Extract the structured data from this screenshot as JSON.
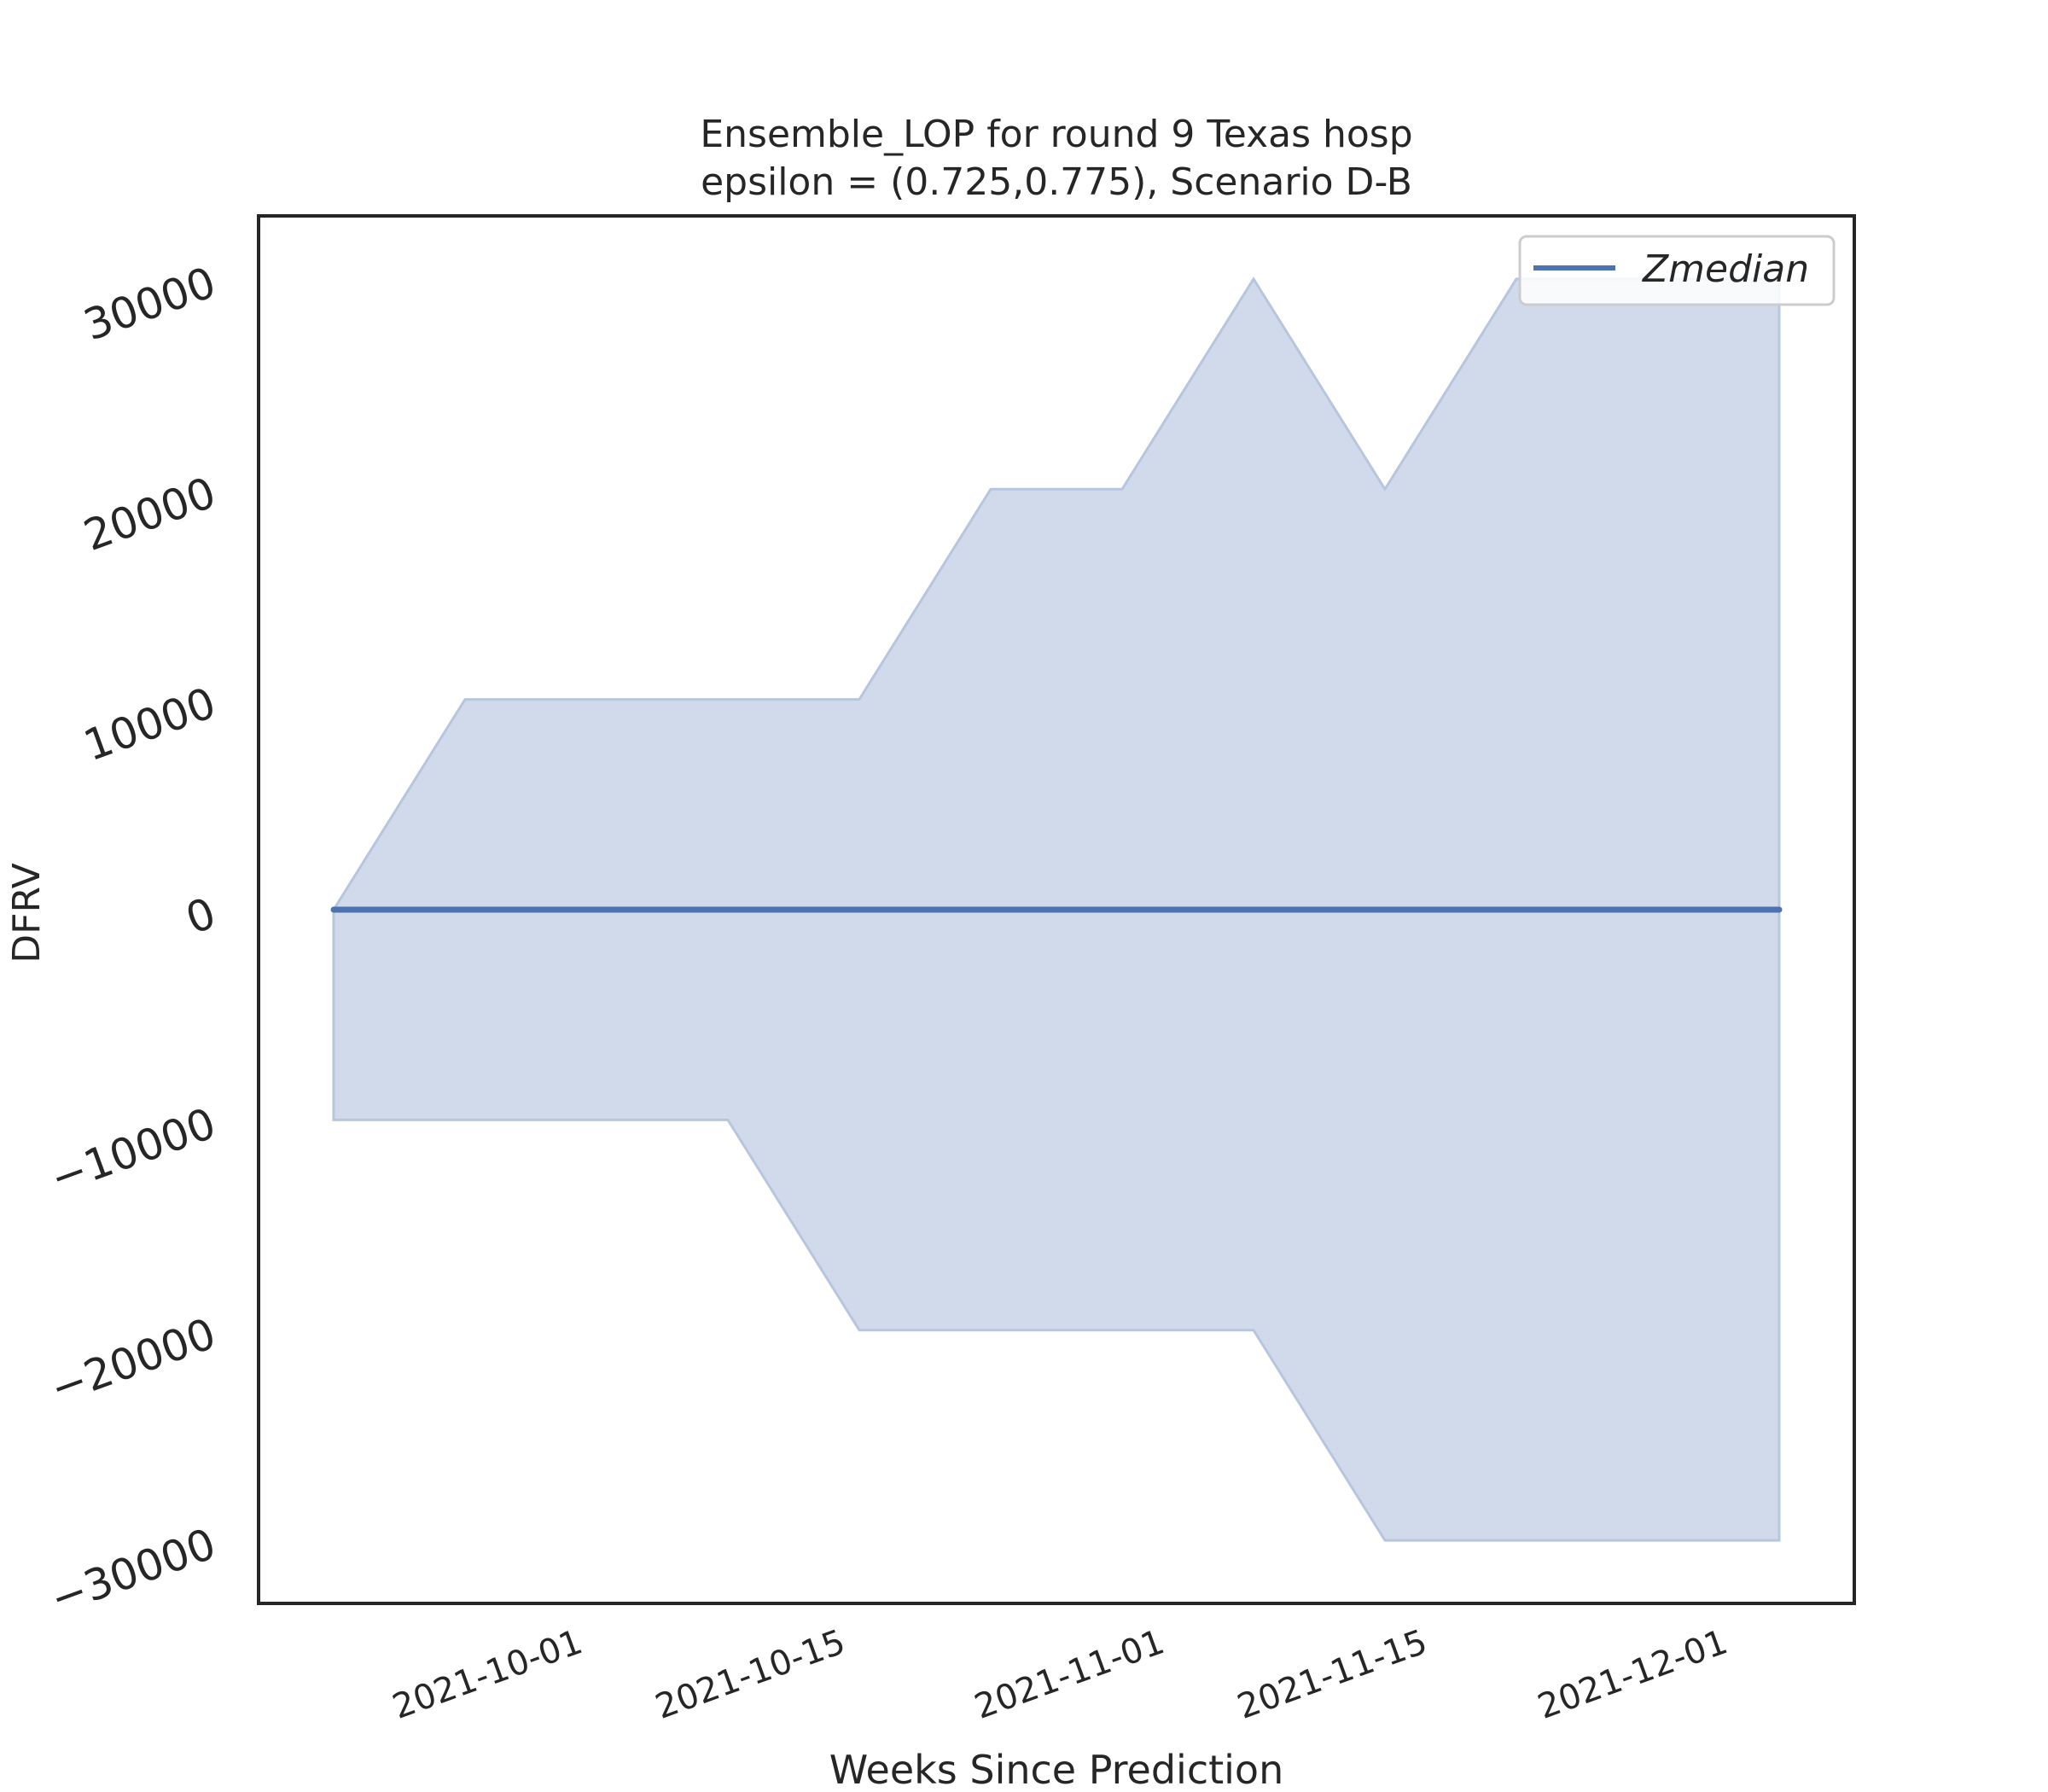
{
  "chart_data": {
    "type": "area",
    "title_line1": "Ensemble_LOP for round 9 Texas  hosp",
    "title_line2": "epsilon = (0.725,0.775), Scenario D-B",
    "xlabel": "Weeks Since Prediction",
    "ylabel": "DFRV",
    "x": [
      "2021-09-18",
      "2021-09-25",
      "2021-10-02",
      "2021-10-09",
      "2021-10-16",
      "2021-10-23",
      "2021-10-30",
      "2021-11-06",
      "2021-11-13",
      "2021-11-20",
      "2021-11-27",
      "2021-12-04"
    ],
    "x_range": [
      "2021-09-14",
      "2021-12-08"
    ],
    "xticks": [
      "2021-10-01",
      "2021-10-15",
      "2021-11-01",
      "2021-11-15",
      "2021-12-01"
    ],
    "ylim": [
      -33000,
      33000
    ],
    "yticks": [
      30000,
      20000,
      10000,
      0,
      -10000,
      -20000,
      -30000
    ],
    "ytick_labels": [
      "30000",
      "20000",
      "10000",
      "0",
      "−10000",
      "−20000",
      "−30000"
    ],
    "series": [
      {
        "name": "Zmedian",
        "values": [
          0,
          0,
          0,
          0,
          0,
          0,
          0,
          0,
          0,
          0,
          0,
          0
        ],
        "upper": [
          0,
          10000,
          10000,
          10000,
          10000,
          20000,
          20000,
          30000,
          20000,
          30000,
          30000,
          30000
        ],
        "lower": [
          -10000,
          -10000,
          -10000,
          -10000,
          -20000,
          -20000,
          -20000,
          -20000,
          -30000,
          -30000,
          -30000,
          -30000
        ]
      }
    ],
    "colors": {
      "line": "#4c72b0",
      "band": "#d1daea",
      "band_edge": "#b7c6df",
      "frame": "#262626"
    },
    "grid": false,
    "legend_position": "top-right"
  }
}
